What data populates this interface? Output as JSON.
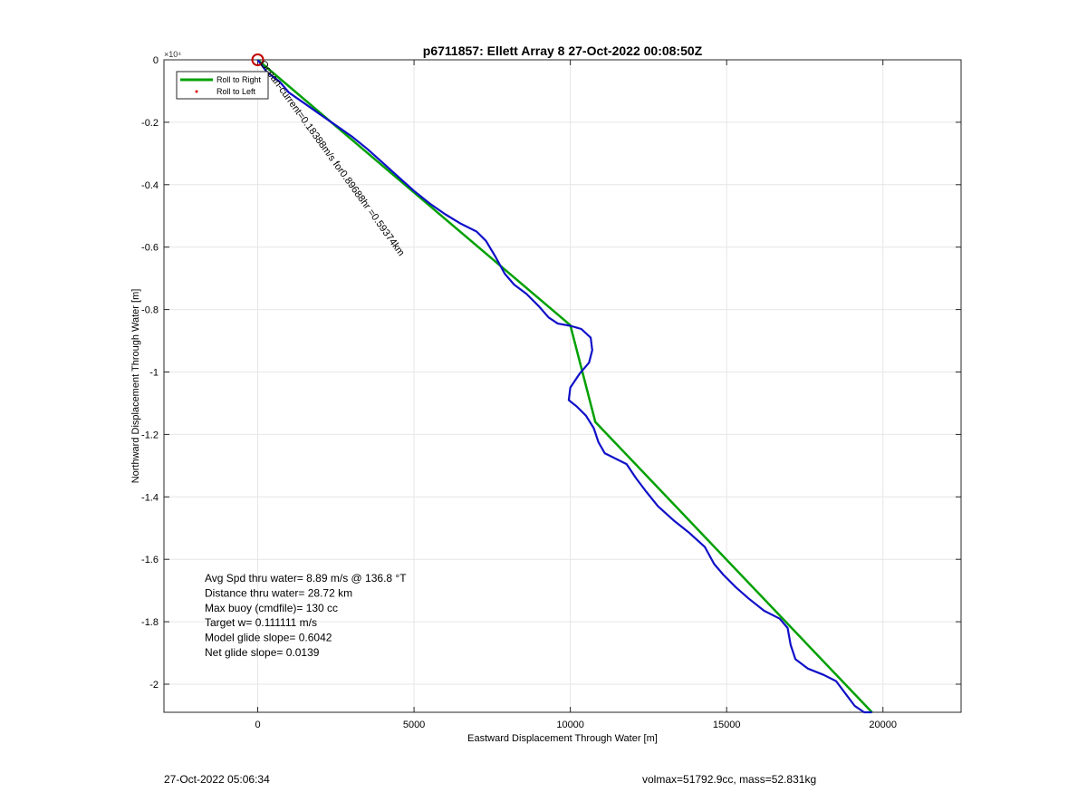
{
  "chart_data": {
    "type": "line",
    "title": "p6711857: Ellett Array 8 27-Oct-2022 00:08:50Z",
    "xlabel": "Eastward Displacement Through Water [m]",
    "ylabel": "Northward Displacement Through Water [m]",
    "xlim": [
      -3000,
      22500
    ],
    "ylim": [
      -20900,
      0
    ],
    "y_exponent_label": "×10⁴",
    "x_ticks": [
      {
        "value": 0,
        "label": "0"
      },
      {
        "value": 5000,
        "label": "5000"
      },
      {
        "value": 10000,
        "label": "10000"
      },
      {
        "value": 15000,
        "label": "15000"
      },
      {
        "value": 20000,
        "label": "20000"
      }
    ],
    "y_ticks": [
      {
        "value": 0,
        "label": "0"
      },
      {
        "value": -2000,
        "label": "-0.2"
      },
      {
        "value": -4000,
        "label": "-0.4"
      },
      {
        "value": -6000,
        "label": "-0.6"
      },
      {
        "value": -8000,
        "label": "-0.8"
      },
      {
        "value": -10000,
        "label": "-1"
      },
      {
        "value": -12000,
        "label": "-1.2"
      },
      {
        "value": -14000,
        "label": "-1.4"
      },
      {
        "value": -16000,
        "label": "-1.6"
      },
      {
        "value": -18000,
        "label": "-1.8"
      },
      {
        "value": -20000,
        "label": "-2"
      }
    ],
    "grid": true,
    "legend": {
      "placement": "top-left",
      "entries": [
        {
          "label": "Roll to Right",
          "color": "#00a000",
          "marker": "line"
        },
        {
          "label": "Roll to Left",
          "color": "#e00000",
          "marker": "dot"
        }
      ]
    },
    "series": [
      {
        "color": "#00a000",
        "x": [
          0,
          10000,
          10800,
          19650
        ],
        "y": [
          0,
          -8500,
          -11600,
          -20900
        ]
      },
      {
        "color": "#1010c8",
        "x": [
          0,
          300,
          700,
          1000,
          1500,
          2000,
          2500,
          3000,
          3500,
          4000,
          4500,
          5000,
          5500,
          6000,
          6500,
          7000,
          7300,
          7600,
          7900,
          8200,
          8600,
          9000,
          9300,
          9600,
          10000,
          10350,
          10650,
          10700,
          10600,
          10300,
          10000,
          9950,
          10200,
          10500,
          10750,
          10900,
          11100,
          11500,
          11800,
          12100,
          12400,
          12800,
          13300,
          13800,
          14300,
          14600,
          14900,
          15300,
          15700,
          16200,
          16700,
          16950,
          17050,
          17200,
          17600,
          18100,
          18500,
          18800,
          19100,
          19400,
          19650
        ],
        "y": [
          0,
          -400,
          -700,
          -1050,
          -1400,
          -1750,
          -2100,
          -2450,
          -2850,
          -3300,
          -3750,
          -4200,
          -4600,
          -4950,
          -5250,
          -5500,
          -5800,
          -6300,
          -6850,
          -7200,
          -7500,
          -7900,
          -8250,
          -8450,
          -8520,
          -8620,
          -8900,
          -9300,
          -9700,
          -10050,
          -10500,
          -10900,
          -11100,
          -11400,
          -11800,
          -12250,
          -12600,
          -12800,
          -12950,
          -13400,
          -13800,
          -14300,
          -14750,
          -15150,
          -15600,
          -16150,
          -16500,
          -16900,
          -17250,
          -17650,
          -17900,
          -18200,
          -18750,
          -19200,
          -19500,
          -19700,
          -19900,
          -20300,
          -20700,
          -20900,
          -20900
        ]
      }
    ],
    "start_marker": {
      "x": 0,
      "y": 0,
      "color": "#c00000"
    },
    "drift_annotation": "Ocean-current=0.18388m/s for0.89688hr =0.59374km",
    "stats": [
      "Avg Spd thru water=  8.89 m/s @ 136.8 °T",
      "Distance thru water= 28.72 km",
      "Max buoy (cmdfile)= 130 cc",
      "Target w= 0.111111 m/s",
      "Model glide slope= 0.6042",
      "Net glide slope= 0.0139"
    ]
  },
  "footer": {
    "left": "27-Oct-2022 05:06:34",
    "right": "volmax=51792.9cc, mass=52.831kg"
  }
}
